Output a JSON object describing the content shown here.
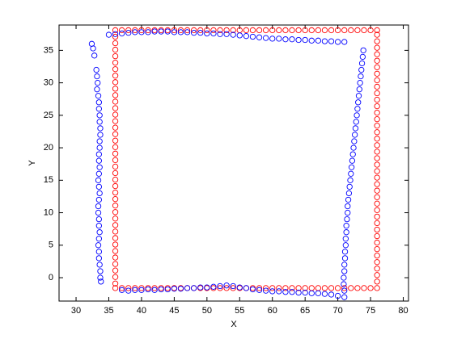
{
  "chart_data": {
    "type": "scatter",
    "xlabel": "X",
    "ylabel": "Y",
    "xlim": [
      27.4,
      80.8
    ],
    "ylim": [
      -3.6,
      38.9
    ],
    "xticks": [
      30,
      35,
      40,
      45,
      50,
      55,
      60,
      65,
      70,
      75,
      80
    ],
    "yticks": [
      0,
      5,
      10,
      15,
      20,
      25,
      30,
      35
    ],
    "marker": "o",
    "box": true,
    "series": [
      {
        "color": "#ff0000",
        "x": [
          36,
          37,
          38,
          39,
          40,
          41,
          42,
          43,
          44,
          45,
          46,
          47,
          48,
          49,
          50,
          51,
          52,
          53,
          54,
          55,
          56,
          57,
          58,
          59,
          60,
          61,
          62,
          63,
          64,
          65,
          66,
          67,
          68,
          69,
          70,
          71,
          72,
          73,
          74,
          75,
          76,
          76,
          76,
          76,
          76,
          76,
          76,
          76,
          76,
          76,
          76,
          76,
          76,
          76,
          76,
          76,
          76,
          76,
          76,
          76,
          76,
          76,
          76,
          76,
          76,
          76,
          76,
          76,
          76,
          76,
          76,
          76,
          76,
          76,
          76,
          76,
          76,
          76,
          76,
          76,
          76,
          75,
          74,
          73,
          72,
          71,
          70,
          69,
          68,
          67,
          66,
          65,
          64,
          63,
          62,
          61,
          60,
          59,
          58,
          57,
          56,
          55,
          54,
          53,
          52,
          51,
          50,
          49,
          48,
          47,
          46,
          45,
          44,
          43,
          42,
          41,
          40,
          39,
          38,
          37,
          36,
          36,
          36,
          36,
          36,
          36,
          36,
          36,
          36,
          36,
          36,
          36,
          36,
          36,
          36,
          36,
          36,
          36,
          36,
          36,
          36,
          36,
          36,
          36,
          36,
          36,
          36,
          36,
          36,
          36,
          36,
          36,
          36,
          36,
          36,
          36,
          36,
          36,
          36,
          36
        ],
        "y": [
          -1.6,
          -1.6,
          -1.6,
          -1.6,
          -1.6,
          -1.6,
          -1.6,
          -1.6,
          -1.6,
          -1.6,
          -1.6,
          -1.6,
          -1.6,
          -1.6,
          -1.6,
          -1.6,
          -1.6,
          -1.6,
          -1.6,
          -1.6,
          -1.6,
          -1.6,
          -1.6,
          -1.6,
          -1.6,
          -1.6,
          -1.6,
          -1.6,
          -1.6,
          -1.6,
          -1.6,
          -1.6,
          -1.6,
          -1.6,
          -1.6,
          -1.6,
          -1.6,
          -1.6,
          -1.6,
          -1.6,
          -1.6,
          -0.6,
          0.4,
          1.4,
          2.4,
          3.4,
          4.4,
          5.4,
          6.4,
          7.4,
          8.4,
          9.4,
          10.4,
          11.4,
          12.4,
          13.4,
          14.4,
          15.4,
          16.4,
          17.4,
          18.4,
          19.4,
          20.4,
          21.4,
          22.4,
          23.4,
          24.4,
          25.4,
          26.4,
          27.4,
          28.4,
          29.4,
          30.4,
          31.4,
          32.4,
          33.4,
          34.4,
          35.4,
          36.4,
          37.4,
          38.1,
          38.1,
          38.1,
          38.1,
          38.1,
          38.1,
          38.1,
          38.1,
          38.1,
          38.1,
          38.1,
          38.1,
          38.1,
          38.1,
          38.1,
          38.1,
          38.1,
          38.1,
          38.1,
          38.1,
          38.1,
          38.1,
          38.1,
          38.1,
          38.1,
          38.1,
          38.1,
          38.1,
          38.1,
          38.1,
          38.1,
          38.1,
          38.1,
          38.1,
          38.1,
          38.1,
          38.1,
          38.1,
          38.1,
          38.1,
          38.1,
          37.1,
          36.1,
          35.1,
          34.1,
          33.1,
          32.1,
          31.1,
          30.1,
          29.1,
          28.1,
          27.1,
          26.1,
          25.1,
          24.1,
          23.1,
          22.1,
          21.1,
          20.1,
          19.1,
          18.1,
          17.1,
          16.1,
          15.1,
          14.1,
          13.1,
          12.1,
          11.1,
          10.1,
          9.1,
          8.1,
          7.1,
          6.1,
          5.1,
          4.1,
          3.1,
          2.1,
          1.1,
          0.1,
          -0.9
        ]
      },
      {
        "color": "#0000ff",
        "x": [
          71,
          70,
          69,
          68,
          67,
          66,
          65,
          64,
          63,
          62,
          61,
          60,
          59,
          58,
          57,
          56,
          55,
          54,
          53,
          52,
          51,
          50,
          49,
          48,
          47,
          46,
          45,
          44,
          43,
          42,
          41,
          40,
          39,
          38,
          37,
          36,
          35,
          32.4,
          32.6,
          32.8,
          33.1,
          33.2,
          33.3,
          33.2,
          33.4,
          33.5,
          33.5,
          33.6,
          33.6,
          33.7,
          33.7,
          33.6,
          33.6,
          33.5,
          33.5,
          33.6,
          33.5,
          33.4,
          33.5,
          33.6,
          33.5,
          33.4,
          33.4,
          33.5,
          33.5,
          33.6,
          33.5,
          33.4,
          33.5,
          33.5,
          33.6,
          33.7,
          33.7,
          33.8,
          37,
          38,
          39,
          40,
          41,
          42,
          43,
          44,
          45,
          46,
          47,
          48,
          49,
          50,
          51,
          52,
          53,
          54,
          55,
          56,
          57,
          58,
          59,
          60,
          61,
          62,
          63,
          64,
          65,
          66,
          67,
          68,
          69,
          70,
          71,
          71.0,
          70.9,
          70.9,
          71.0,
          71.0,
          71.1,
          71.1,
          71.2,
          71.2,
          71.3,
          71.3,
          71.4,
          71.5,
          71.5,
          71.6,
          71.7,
          71.8,
          71.9,
          72.0,
          72.1,
          72.2,
          72.3,
          72.4,
          72.5,
          72.6,
          72.7,
          72.8,
          72.9,
          73.0,
          73.1,
          73.2,
          73.3,
          73.4,
          73.5,
          73.6,
          73.7,
          73.8,
          73.9
        ],
        "y": [
          36.3,
          36.3,
          36.4,
          36.4,
          36.5,
          36.5,
          36.6,
          36.6,
          36.7,
          36.7,
          36.8,
          36.8,
          36.9,
          37.0,
          37.1,
          37.2,
          37.3,
          37.4,
          37.5,
          37.5,
          37.6,
          37.6,
          37.7,
          37.7,
          37.8,
          37.8,
          37.8,
          37.9,
          37.9,
          37.9,
          37.8,
          37.8,
          37.8,
          37.7,
          37.6,
          37.5,
          37.4,
          36.0,
          35.3,
          34.2,
          32,
          31,
          30,
          29,
          28,
          27,
          26,
          25,
          24,
          23,
          22,
          21,
          20,
          19,
          18,
          17,
          16,
          15,
          14,
          13,
          12,
          11,
          10,
          9,
          8,
          7,
          6,
          5,
          4,
          3,
          2,
          1,
          0,
          -0.6,
          -1.9,
          -2.0,
          -1.9,
          -1.9,
          -1.8,
          -1.9,
          -1.8,
          -1.8,
          -1.7,
          -1.7,
          -1.6,
          -1.6,
          -1.5,
          -1.5,
          -1.4,
          -1.3,
          -1.2,
          -1.3,
          -1.5,
          -1.6,
          -1.8,
          -1.9,
          -2.0,
          -2.1,
          -2.1,
          -2.2,
          -2.2,
          -2.3,
          -2.3,
          -2.4,
          -2.4,
          -2.5,
          -2.6,
          -2.8,
          -3.0,
          -2,
          -1,
          0,
          1,
          2,
          3,
          4,
          5,
          6,
          7,
          8,
          9,
          10,
          11,
          12,
          13,
          14,
          15,
          16,
          17,
          18,
          19,
          20,
          21,
          22,
          23,
          24,
          25,
          26,
          27,
          28,
          29,
          30,
          31,
          32,
          33,
          34,
          35
        ]
      }
    ]
  }
}
